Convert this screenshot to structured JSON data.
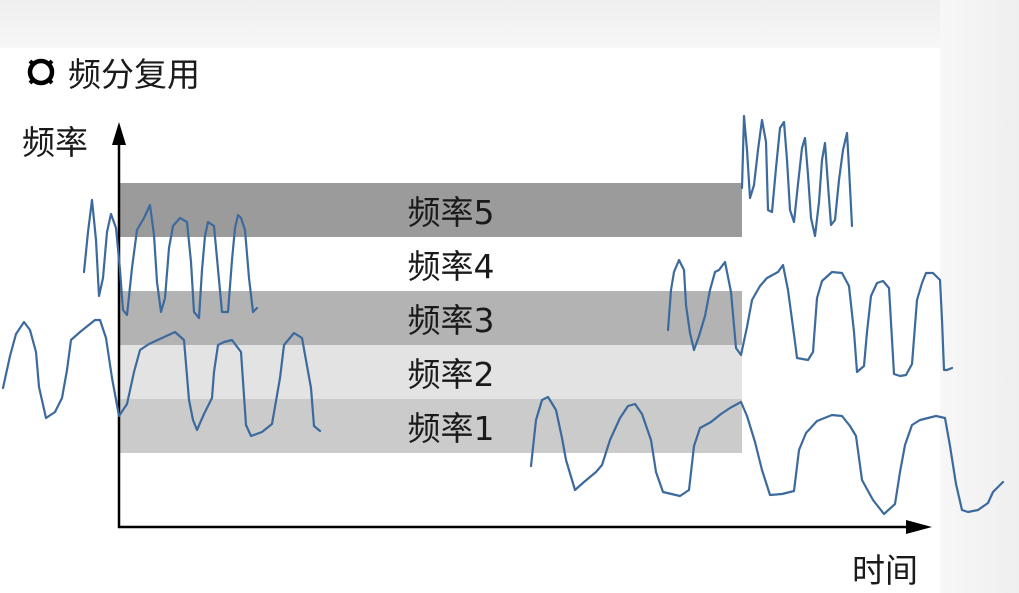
{
  "title": "频分复用",
  "title_icon": "ring-icon",
  "axis": {
    "y_label": "频率",
    "x_label": "时间"
  },
  "bands": [
    {
      "label": "频率5",
      "color": "#9b9b9b"
    },
    {
      "label": "频率4",
      "color": "#ffffff"
    },
    {
      "label": "频率3",
      "color": "#b3b3b3"
    },
    {
      "label": "频率2",
      "color": "#e3e3e3"
    },
    {
      "label": "频率1",
      "color": "#cbcbcb"
    }
  ],
  "colors": {
    "signal": "#3c6a9c",
    "axis": "#000000"
  }
}
